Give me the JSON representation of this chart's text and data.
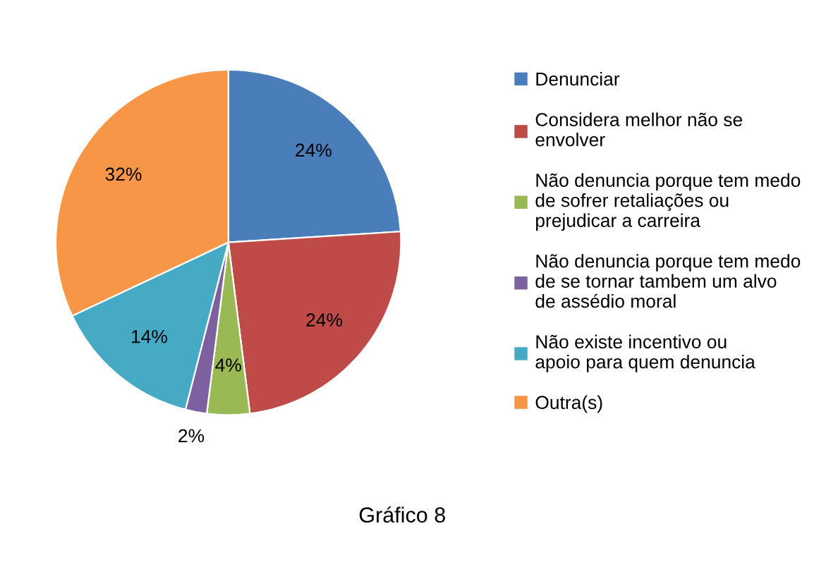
{
  "chart_data": {
    "type": "pie",
    "annotations": [
      "Gráfico 8"
    ],
    "categories": [
      "Denunciar",
      "Considera melhor não se envolver",
      "Não denuncia porque tem medo de sofrer retaliações ou prejudicar a carreira",
      "Não denuncia porque tem medo de se tornar tambem um alvo de assédio moral",
      "Não existe incentivo ou apoio para quem denuncia",
      "Outra(s)"
    ],
    "values": [
      24,
      24,
      4,
      2,
      14,
      32
    ],
    "colors": [
      "#4a7ebb",
      "#be4b48",
      "#98b954",
      "#7d60a0",
      "#46aac5",
      "#f79646"
    ],
    "value_labels": [
      "24%",
      "24%",
      "4%",
      "2%",
      "14%",
      "32%"
    ],
    "legend": "right"
  }
}
